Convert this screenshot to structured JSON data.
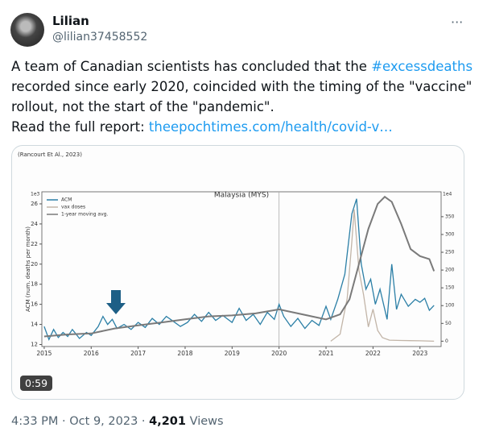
{
  "user": {
    "name": "Lilian",
    "handle": "@lilian37458552",
    "menu": "···"
  },
  "tweet": {
    "text_before": "A team of Canadian scientists has concluded that the ",
    "hashtag": "#excessdeaths",
    "text_after": " recorded since early 2020, coincided with the timing of the \"vaccine\" rollout, not the start of the \"pandemic\".",
    "link_prefix": "Read the full report: ",
    "link": "theepochtimes.com/health/covid-v…"
  },
  "media": {
    "source": "(Rancourt Et Al., 2023)",
    "duration": "0:59",
    "chart_data": {
      "type": "line",
      "title": "Malaysia (MYS)",
      "y_label": "ACM (num. deaths per month)",
      "y_offset_label": "1e3",
      "y2_offset_label": "1e4",
      "xlim": [
        2014.95,
        2023.45
      ],
      "xticks": [
        2015,
        2016,
        2017,
        2018,
        2019,
        2020,
        2021,
        2022,
        2023
      ],
      "ylim": [
        11.8,
        27.2
      ],
      "yticks": [
        12,
        14,
        16,
        18,
        20,
        22,
        24,
        26
      ],
      "y2lim": [
        -15,
        420
      ],
      "y2ticks": [
        0,
        50,
        100,
        150,
        200,
        250,
        300,
        350
      ],
      "legend": "top-left",
      "series": [
        {
          "name": "ACM",
          "color": "#2b7fa6",
          "x": [
            2015.0,
            2015.1,
            2015.2,
            2015.3,
            2015.4,
            2015.5,
            2015.6,
            2015.75,
            2015.9,
            2016.0,
            2016.15,
            2016.25,
            2016.35,
            2016.45,
            2016.55,
            2016.7,
            2016.85,
            2017.0,
            2017.15,
            2017.3,
            2017.45,
            2017.6,
            2017.75,
            2017.9,
            2018.05,
            2018.2,
            2018.35,
            2018.5,
            2018.65,
            2018.8,
            2019.0,
            2019.15,
            2019.3,
            2019.45,
            2019.6,
            2019.75,
            2019.9,
            2020.0,
            2020.1,
            2020.25,
            2020.4,
            2020.55,
            2020.7,
            2020.85,
            2021.0,
            2021.1,
            2021.25,
            2021.4,
            2021.55,
            2021.65,
            2021.75,
            2021.85,
            2021.95,
            2022.05,
            2022.15,
            2022.3,
            2022.4,
            2022.5,
            2022.6,
            2022.75,
            2022.9,
            2023.0,
            2023.1,
            2023.2,
            2023.3
          ],
          "values": [
            13.8,
            12.5,
            13.5,
            12.7,
            13.2,
            12.8,
            13.5,
            12.6,
            13.2,
            12.9,
            13.8,
            14.8,
            14.0,
            14.5,
            13.6,
            14.0,
            13.5,
            14.2,
            13.7,
            14.6,
            14.0,
            14.8,
            14.3,
            13.8,
            14.2,
            15.0,
            14.3,
            15.2,
            14.4,
            14.9,
            14.2,
            15.6,
            14.4,
            15.0,
            14.0,
            15.2,
            14.5,
            16.0,
            14.8,
            13.8,
            14.6,
            13.6,
            14.4,
            13.9,
            15.8,
            14.5,
            16.5,
            19.0,
            25.0,
            26.5,
            20.0,
            17.5,
            18.5,
            16.0,
            17.5,
            14.5,
            20.0,
            15.5,
            17.0,
            15.8,
            16.5,
            16.2,
            16.6,
            15.4,
            15.9
          ]
        },
        {
          "name": "vax doses",
          "color": "#c2b5a8",
          "axis": "y2",
          "x": [
            2021.1,
            2021.3,
            2021.45,
            2021.55,
            2021.6,
            2021.7,
            2021.8,
            2021.9,
            2022.0,
            2022.1,
            2022.2,
            2022.35,
            2022.6,
            2023.0,
            2023.3
          ],
          "values": [
            0,
            20,
            120,
            280,
            370,
            200,
            130,
            40,
            90,
            30,
            10,
            3,
            2,
            1,
            0
          ]
        },
        {
          "name": "1-year moving avg.",
          "color": "#7a7a7a",
          "x": [
            2015.0,
            2015.5,
            2016.0,
            2016.5,
            2017.0,
            2017.5,
            2018.0,
            2018.5,
            2019.0,
            2019.5,
            2020.0,
            2020.3,
            2020.7,
            2021.0,
            2021.3,
            2021.5,
            2021.7,
            2021.9,
            2022.1,
            2022.25,
            2022.4,
            2022.6,
            2022.8,
            2023.0,
            2023.2,
            2023.3
          ],
          "values": [
            12.8,
            13.0,
            13.1,
            13.6,
            13.9,
            14.2,
            14.5,
            14.8,
            14.9,
            15.1,
            15.5,
            15.2,
            14.8,
            14.5,
            15.0,
            16.5,
            20.0,
            23.5,
            26.0,
            26.7,
            26.2,
            24.0,
            21.5,
            20.8,
            20.5,
            19.3
          ]
        }
      ]
    }
  },
  "footer": {
    "time": "4:33 PM",
    "separator": "·",
    "date": "Oct 9, 2023",
    "views_count": "4,201",
    "views_label": "Views"
  }
}
